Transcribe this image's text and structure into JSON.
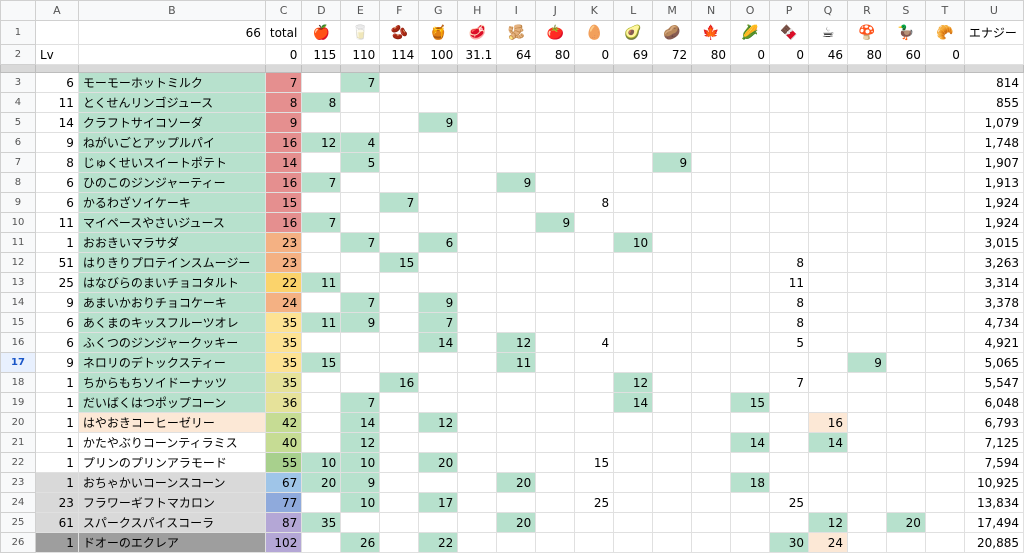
{
  "columns": [
    "A",
    "B",
    "C",
    "D",
    "E",
    "F",
    "G",
    "H",
    "I",
    "J",
    "K",
    "L",
    "M",
    "N",
    "O",
    "P",
    "Q",
    "R",
    "S",
    "T",
    "U"
  ],
  "row1": {
    "rownum": "1",
    "b": "66",
    "c": "total",
    "icons": [
      "🍎",
      "🥛",
      "🫘",
      "🍯",
      "🥩",
      "🫚",
      "🍅",
      "🥚",
      "🥑",
      "🥔",
      "🍁",
      "🌽",
      "🍫",
      "☕",
      "🍄",
      "🦆",
      "🥐"
    ],
    "icon_names": [
      "apple-icon",
      "milk-icon",
      "beans-icon",
      "honey-icon",
      "meat-icon",
      "ginger-icon",
      "tomato-icon",
      "egg-icon",
      "avocado-icon",
      "potato-icon",
      "leaf-icon",
      "corn-icon",
      "chocolate-icon",
      "coffee-icon",
      "mushroom-icon",
      "duck-icon",
      "croissant-icon"
    ],
    "u": "エナジー"
  },
  "row2": {
    "rownum": "2",
    "a": "Lv",
    "c": "0",
    "vals": [
      "115",
      "110",
      "114",
      "100",
      "31.1",
      "64",
      "80",
      "0",
      "69",
      "72",
      "80",
      "0",
      "0",
      "46",
      "80",
      "60",
      "0"
    ]
  },
  "rows": [
    {
      "rownum": "3",
      "lv": "6",
      "name": "モーモーホットミルク",
      "total": "7",
      "c": "#e58f8f",
      "cells": [
        "",
        "7",
        "",
        "",
        "",
        "",
        "",
        "",
        "",
        "",
        "",
        "",
        "",
        "",
        "",
        "",
        ""
      ],
      "energy": "814"
    },
    {
      "rownum": "4",
      "lv": "11",
      "name": "とくせんリンゴジュース",
      "total": "8",
      "c": "#e58f8f",
      "cells": [
        "8",
        "",
        "",
        "",
        "",
        "",
        "",
        "",
        "",
        "",
        "",
        "",
        "",
        "",
        "",
        "",
        ""
      ],
      "energy": "855"
    },
    {
      "rownum": "5",
      "lv": "14",
      "name": "クラフトサイコソーダ",
      "total": "9",
      "c": "#e58f8f",
      "cells": [
        "",
        "",
        "",
        "9",
        "",
        "",
        "",
        "",
        "",
        "",
        "",
        "",
        "",
        "",
        "",
        "",
        ""
      ],
      "energy": "1,079"
    },
    {
      "rownum": "6",
      "lv": "9",
      "name": "ねがいごとアップルパイ",
      "total": "16",
      "c": "#e58f8f",
      "cells": [
        "12",
        "4",
        "",
        "",
        "",
        "",
        "",
        "",
        "",
        "",
        "",
        "",
        "",
        "",
        "",
        "",
        ""
      ],
      "energy": "1,748"
    },
    {
      "rownum": "7",
      "lv": "8",
      "name": "じゅくせいスイートポテト",
      "total": "14",
      "c": "#e58f8f",
      "cells": [
        "",
        "5",
        "",
        "",
        "",
        "",
        "",
        "",
        "",
        "9",
        "",
        "",
        "",
        "",
        "",
        "",
        ""
      ],
      "energy": "1,907"
    },
    {
      "rownum": "8",
      "lv": "6",
      "name": "ひのこのジンジャーティー",
      "total": "16",
      "c": "#e58f8f",
      "cells": [
        "7",
        "",
        "",
        "",
        "",
        "9",
        "",
        "",
        "",
        "",
        "",
        "",
        "",
        "",
        "",
        "",
        ""
      ],
      "energy": "1,913"
    },
    {
      "rownum": "9",
      "lv": "6",
      "name": "かるわざソイケーキ",
      "total": "15",
      "c": "#e58f8f",
      "cells": [
        "",
        "",
        "7",
        "",
        "",
        "",
        "",
        "8",
        "",
        "",
        "",
        "",
        "",
        "",
        "",
        "",
        ""
      ],
      "energy": "1,924"
    },
    {
      "rownum": "10",
      "lv": "11",
      "name": "マイペースやさいジュース",
      "total": "16",
      "c": "#e58f8f",
      "cells": [
        "7",
        "",
        "",
        "",
        "",
        "",
        "9",
        "",
        "",
        "",
        "",
        "",
        "",
        "",
        "",
        "",
        ""
      ],
      "energy": "1,924"
    },
    {
      "rownum": "11",
      "lv": "1",
      "name": "おおきいマラサダ",
      "total": "23",
      "c": "#f4b183",
      "cells": [
        "",
        "7",
        "",
        "6",
        "",
        "",
        "",
        "",
        "10",
        "",
        "",
        "",
        "",
        "",
        "",
        "",
        ""
      ],
      "energy": "3,015"
    },
    {
      "rownum": "12",
      "lv": "51",
      "name": "はりきりプロテインスムージー",
      "total": "23",
      "c": "#f4b183",
      "cells": [
        "",
        "",
        "15",
        "",
        "",
        "",
        "",
        "",
        "",
        "",
        "",
        "",
        "8",
        "",
        "",
        "",
        ""
      ],
      "energy": "3,263"
    },
    {
      "rownum": "13",
      "lv": "25",
      "name": "はなびらのまいチョコタルト",
      "total": "22",
      "c": "#fbd36b",
      "cells": [
        "11",
        "",
        "",
        "",
        "",
        "",
        "",
        "",
        "",
        "",
        "",
        "",
        "11",
        "",
        "",
        "",
        ""
      ],
      "energy": "3,314"
    },
    {
      "rownum": "14",
      "lv": "9",
      "name": "あまいかおりチョコケーキ",
      "total": "24",
      "c": "#f4b183",
      "cells": [
        "",
        "7",
        "",
        "9",
        "",
        "",
        "",
        "",
        "",
        "",
        "",
        "",
        "8",
        "",
        "",
        "",
        ""
      ],
      "energy": "3,378"
    },
    {
      "rownum": "15",
      "lv": "6",
      "name": "あくまのキッスフルーツオレ",
      "total": "35",
      "c": "#fde293",
      "cells": [
        "11",
        "9",
        "",
        "7",
        "",
        "",
        "",
        "",
        "",
        "",
        "",
        "",
        "8",
        "",
        "",
        "",
        ""
      ],
      "energy": "4,734"
    },
    {
      "rownum": "16",
      "lv": "6",
      "name": "ふくつのジンジャークッキー",
      "total": "35",
      "c": "#fde293",
      "cells": [
        "",
        "",
        "",
        "14",
        "",
        "12",
        "",
        "4",
        "",
        "",
        "",
        "",
        "5",
        "",
        "",
        "",
        ""
      ],
      "energy": "4,921"
    },
    {
      "rownum": "17",
      "lv": "9",
      "name": "ネロリのデトックスティー",
      "total": "35",
      "c": "#fde293",
      "cells": [
        "15",
        "",
        "",
        "",
        "",
        "11",
        "",
        "",
        "",
        "",
        "",
        "",
        "",
        "",
        "9",
        "",
        ""
      ],
      "energy": "5,065"
    },
    {
      "rownum": "18",
      "lv": "1",
      "name": "ちからもちソイドーナッツ",
      "total": "35",
      "c": "#e6e29a",
      "cells": [
        "",
        "",
        "16",
        "",
        "",
        "",
        "",
        "",
        "12",
        "",
        "",
        "",
        "7",
        "",
        "",
        "",
        ""
      ],
      "energy": "5,547"
    },
    {
      "rownum": "19",
      "lv": "1",
      "name": "だいばくはつポップコーン",
      "total": "36",
      "c": "#e6e29a",
      "cells": [
        "",
        "7",
        "",
        "",
        "",
        "",
        "",
        "",
        "14",
        "",
        "",
        "15",
        "",
        "",
        "",
        "",
        ""
      ],
      "energy": "6,048"
    },
    {
      "rownum": "20",
      "lv": "1",
      "name": "はやおきコーヒーゼリー",
      "total": "42",
      "c": "#c6dc94",
      "cells": [
        "",
        "14",
        "",
        "12",
        "",
        "",
        "",
        "",
        "",
        "",
        "",
        "",
        "",
        "16",
        "",
        "",
        ""
      ],
      "energy": "6,793"
    },
    {
      "rownum": "21",
      "lv": "1",
      "name": "かたやぶりコーンティラミス",
      "total": "40",
      "c": "#c6dc94",
      "cells": [
        "",
        "12",
        "",
        "",
        "",
        "",
        "",
        "",
        "",
        "",
        "",
        "14",
        "",
        "14",
        "",
        "",
        ""
      ],
      "energy": "7,125"
    },
    {
      "rownum": "22",
      "lv": "1",
      "name": "プリンのプリンアラモード",
      "total": "55",
      "c": "#a8d08d",
      "cells": [
        "10",
        "10",
        "",
        "20",
        "",
        "",
        "",
        "15",
        "",
        "",
        "",
        "",
        "",
        "",
        "",
        "",
        ""
      ],
      "energy": "7,594"
    },
    {
      "rownum": "23",
      "lv": "1",
      "name": "おちゃかいコーンスコーン",
      "total": "67",
      "c": "#9fc5e8",
      "cells": [
        "20",
        "9",
        "",
        "",
        "",
        "20",
        "",
        "",
        "",
        "",
        "",
        "18",
        "",
        "",
        "",
        "",
        ""
      ],
      "energy": "10,925"
    },
    {
      "rownum": "24",
      "lv": "23",
      "name": "フラワーギフトマカロン",
      "total": "77",
      "c": "#8faadc",
      "cells": [
        "",
        "10",
        "",
        "17",
        "",
        "",
        "",
        "25",
        "",
        "",
        "",
        "",
        "25",
        "",
        "",
        "",
        ""
      ],
      "energy": "13,834"
    },
    {
      "rownum": "25",
      "lv": "61",
      "name": "スパークスパイスコーラ",
      "total": "87",
      "c": "#b4a7d6",
      "cells": [
        "35",
        "",
        "",
        "",
        "",
        "20",
        "",
        "",
        "",
        "",
        "",
        "",
        "",
        "12",
        "",
        "20",
        ""
      ],
      "energy": "17,494"
    },
    {
      "rownum": "26",
      "lv": "1",
      "name": "ドオーのエクレア",
      "total": "102",
      "c": "#b4a7d6",
      "cells": [
        "",
        "26",
        "",
        "22",
        "",
        "",
        "",
        "",
        "",
        "",
        "",
        "",
        "30",
        "24",
        "",
        "",
        ""
      ],
      "energy": "20,885"
    }
  ]
}
